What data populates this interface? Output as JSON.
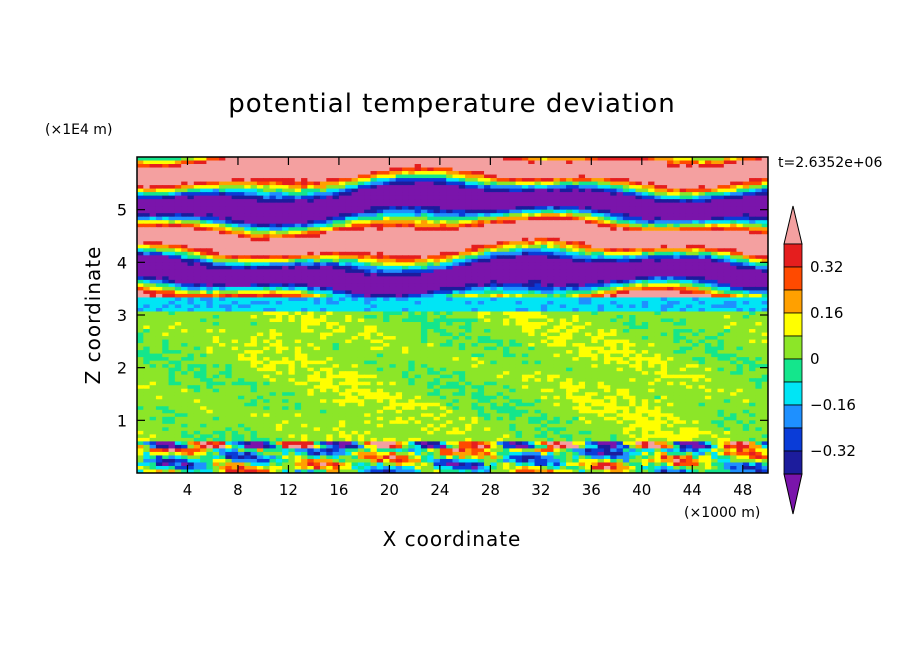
{
  "chart_data": {
    "type": "heatmap",
    "title": "potential temperature deviation",
    "xlabel": "X coordinate",
    "ylabel": "Z coordinate",
    "x_units": "(×1000 m)",
    "y_units": "(×1E4 m)",
    "time_label": "t=2.6352e+06",
    "xlim": [
      0,
      50
    ],
    "ylim": [
      0,
      6
    ],
    "x_ticks": [
      4,
      8,
      12,
      16,
      20,
      24,
      28,
      32,
      36,
      40,
      44,
      48
    ],
    "y_ticks": [
      1,
      2,
      3,
      4,
      5
    ],
    "colorbar": {
      "levels": [
        -0.4,
        -0.32,
        -0.24,
        -0.16,
        -0.08,
        0,
        0.08,
        0.16,
        0.24,
        0.32,
        0.4
      ],
      "labeled_levels": [
        "0.32",
        "0.16",
        "0",
        "-0.16",
        "-0.32"
      ],
      "colors": [
        "#1c1c9c",
        "#0a3cd8",
        "#1e90ff",
        "#00e5f5",
        "#14e68c",
        "#8ce628",
        "#ffff00",
        "#ffa000",
        "#ff4a00",
        "#e51e1e"
      ],
      "over_color": "#f4a0a0",
      "under_color": "#7a14ab"
    },
    "bands": [
      {
        "z": [
          0.0,
          0.15
        ],
        "field": "mixed-blue-green"
      },
      {
        "z": [
          0.15,
          0.45
        ],
        "field": "green-yellow-red patches"
      },
      {
        "z": [
          0.45,
          0.6
        ],
        "field": "blue-pink-red"
      },
      {
        "z": [
          0.6,
          3.0
        ],
        "field": "green-light-green"
      },
      {
        "z": [
          3.0,
          3.3
        ],
        "field": "cyan-blue stripe"
      },
      {
        "z": [
          3.3,
          5.9
        ],
        "field": "alternating pink and purple layers"
      }
    ]
  }
}
